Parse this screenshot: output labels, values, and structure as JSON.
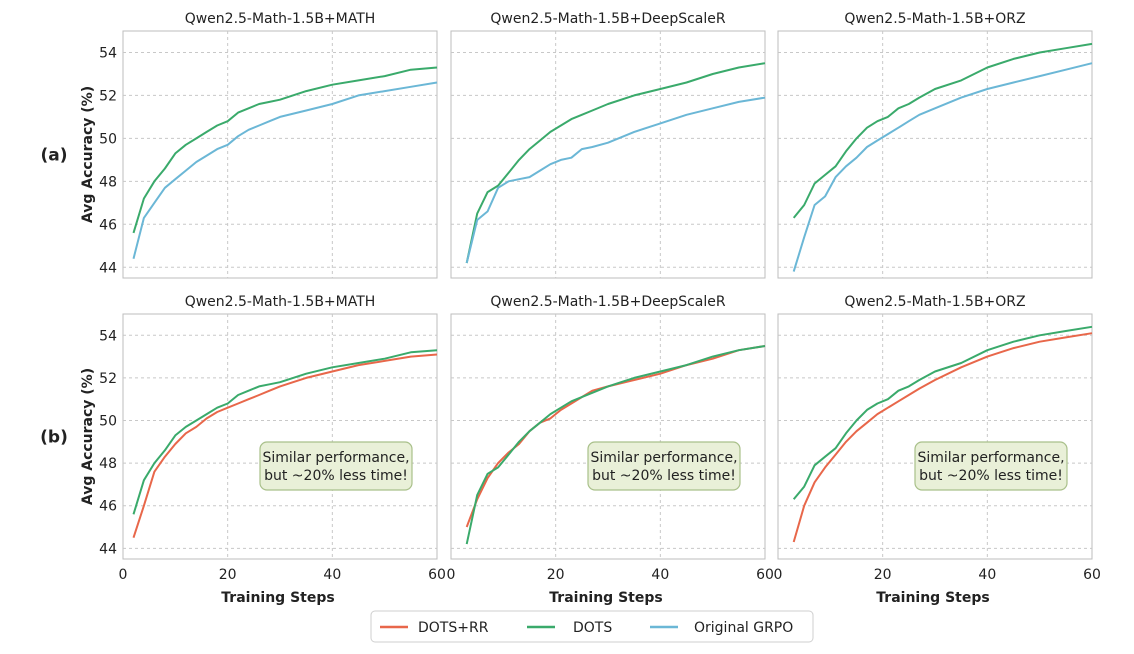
{
  "colors": {
    "DOTS+RR": "#e8674a",
    "DOTS": "#3aaa6b",
    "Original GRPO": "#6bb7d6",
    "annot_fill": "#e9f0d8",
    "annot_stroke": "#a9c08a"
  },
  "row_labels": [
    "(a)",
    "(b)"
  ],
  "ylabel": "Avg Accuracy (%)",
  "xlabel": "Training Steps",
  "annotation": [
    "Similar performance,",
    "but ~20% less time!"
  ],
  "legend": [
    "DOTS+RR",
    "DOTS",
    "Original GRPO"
  ],
  "chart_data": [
    {
      "type": "line",
      "row": "(a)",
      "title": "Qwen2.5-Math-1.5B+MATH",
      "xlim": [
        0,
        60
      ],
      "ylim": [
        43.5,
        55
      ],
      "xticks": [
        0,
        20,
        40,
        60
      ],
      "yticks": [
        44,
        46,
        48,
        50,
        52,
        54
      ],
      "grid": true,
      "series": [
        {
          "name": "DOTS",
          "x": [
            2,
            4,
            6,
            8,
            10,
            12,
            14,
            16,
            18,
            20,
            22,
            24,
            26,
            28,
            30,
            35,
            40,
            45,
            50,
            55,
            60
          ],
          "y": [
            45.6,
            47.2,
            48.0,
            48.6,
            49.3,
            49.7,
            50.0,
            50.3,
            50.6,
            50.8,
            51.2,
            51.4,
            51.6,
            51.7,
            51.8,
            52.2,
            52.5,
            52.7,
            52.9,
            53.2,
            53.3
          ]
        },
        {
          "name": "Original GRPO",
          "x": [
            2,
            4,
            6,
            8,
            10,
            12,
            14,
            16,
            18,
            20,
            22,
            24,
            26,
            28,
            30,
            35,
            40,
            45,
            50,
            55,
            60
          ],
          "y": [
            44.4,
            46.3,
            47.0,
            47.7,
            48.1,
            48.5,
            48.9,
            49.2,
            49.5,
            49.7,
            50.1,
            50.4,
            50.6,
            50.8,
            51.0,
            51.3,
            51.6,
            52.0,
            52.2,
            52.4,
            52.6
          ]
        }
      ]
    },
    {
      "type": "line",
      "row": "(a)",
      "title": "Qwen2.5-Math-1.5B+DeepScaleR",
      "xlim": [
        0,
        60
      ],
      "ylim": [
        43.5,
        55
      ],
      "xticks": [
        0,
        20,
        40,
        60
      ],
      "yticks": [
        44,
        46,
        48,
        50,
        52,
        54
      ],
      "grid": true,
      "series": [
        {
          "name": "DOTS",
          "x": [
            3,
            5,
            7,
            9,
            11,
            13,
            15,
            17,
            19,
            21,
            23,
            25,
            27,
            30,
            35,
            40,
            45,
            50,
            55,
            60
          ],
          "y": [
            44.2,
            46.5,
            47.5,
            47.8,
            48.4,
            49.0,
            49.5,
            49.9,
            50.3,
            50.6,
            50.9,
            51.1,
            51.3,
            51.6,
            52.0,
            52.3,
            52.6,
            53.0,
            53.3,
            53.5
          ]
        },
        {
          "name": "Original GRPO",
          "x": [
            3,
            5,
            7,
            9,
            11,
            13,
            15,
            17,
            19,
            21,
            23,
            25,
            27,
            30,
            35,
            40,
            45,
            50,
            55,
            60
          ],
          "y": [
            44.2,
            46.2,
            46.6,
            47.7,
            48.0,
            48.1,
            48.2,
            48.5,
            48.8,
            49.0,
            49.1,
            49.5,
            49.6,
            49.8,
            50.3,
            50.7,
            51.1,
            51.4,
            51.7,
            51.9
          ]
        }
      ]
    },
    {
      "type": "line",
      "row": "(a)",
      "title": "Qwen2.5-Math-1.5B+ORZ",
      "xlim": [
        0,
        60
      ],
      "ylim": [
        43.5,
        55
      ],
      "xticks": [
        0,
        20,
        40,
        60
      ],
      "yticks": [
        44,
        46,
        48,
        50,
        52,
        54
      ],
      "grid": true,
      "series": [
        {
          "name": "DOTS",
          "x": [
            3,
            5,
            7,
            9,
            11,
            13,
            15,
            17,
            19,
            21,
            23,
            25,
            27,
            30,
            35,
            40,
            45,
            50,
            55,
            60
          ],
          "y": [
            46.3,
            46.9,
            47.9,
            48.3,
            48.7,
            49.4,
            50.0,
            50.5,
            50.8,
            51.0,
            51.4,
            51.6,
            51.9,
            52.3,
            52.7,
            53.3,
            53.7,
            54.0,
            54.2,
            54.4
          ]
        },
        {
          "name": "Original GRPO",
          "x": [
            3,
            5,
            7,
            9,
            11,
            13,
            15,
            17,
            19,
            21,
            23,
            25,
            27,
            30,
            35,
            40,
            45,
            50,
            55,
            60
          ],
          "y": [
            43.8,
            45.4,
            46.9,
            47.3,
            48.2,
            48.7,
            49.1,
            49.6,
            49.9,
            50.2,
            50.5,
            50.8,
            51.1,
            51.4,
            51.9,
            52.3,
            52.6,
            52.9,
            53.2,
            53.5
          ]
        }
      ]
    },
    {
      "type": "line",
      "row": "(b)",
      "title": "Qwen2.5-Math-1.5B+MATH",
      "xlim": [
        0,
        60
      ],
      "ylim": [
        43.5,
        55
      ],
      "xticks": [
        0,
        20,
        40,
        60
      ],
      "yticks": [
        44,
        46,
        48,
        50,
        52,
        54
      ],
      "grid": true,
      "series": [
        {
          "name": "DOTS+RR",
          "x": [
            2,
            4,
            6,
            8,
            10,
            12,
            14,
            16,
            18,
            20,
            22,
            24,
            26,
            28,
            30,
            35,
            40,
            45,
            50,
            55,
            60
          ],
          "y": [
            44.5,
            46.0,
            47.6,
            48.3,
            48.9,
            49.4,
            49.7,
            50.1,
            50.4,
            50.6,
            50.8,
            51.0,
            51.2,
            51.4,
            51.6,
            52.0,
            52.3,
            52.6,
            52.8,
            53.0,
            53.1
          ]
        },
        {
          "name": "DOTS",
          "x": [
            2,
            4,
            6,
            8,
            10,
            12,
            14,
            16,
            18,
            20,
            22,
            24,
            26,
            28,
            30,
            35,
            40,
            45,
            50,
            55,
            60
          ],
          "y": [
            45.6,
            47.2,
            48.0,
            48.6,
            49.3,
            49.7,
            50.0,
            50.3,
            50.6,
            50.8,
            51.2,
            51.4,
            51.6,
            51.7,
            51.8,
            52.2,
            52.5,
            52.7,
            52.9,
            53.2,
            53.3
          ]
        }
      ]
    },
    {
      "type": "line",
      "row": "(b)",
      "title": "Qwen2.5-Math-1.5B+DeepScaleR",
      "xlim": [
        0,
        60
      ],
      "ylim": [
        43.5,
        55
      ],
      "xticks": [
        0,
        20,
        40,
        60
      ],
      "yticks": [
        44,
        46,
        48,
        50,
        52,
        54
      ],
      "grid": true,
      "series": [
        {
          "name": "DOTS+RR",
          "x": [
            3,
            5,
            7,
            9,
            11,
            13,
            15,
            17,
            19,
            21,
            23,
            25,
            27,
            30,
            35,
            40,
            45,
            50,
            55,
            60
          ],
          "y": [
            45.0,
            46.3,
            47.3,
            48.0,
            48.5,
            48.9,
            49.5,
            49.9,
            50.1,
            50.5,
            50.8,
            51.1,
            51.4,
            51.6,
            51.9,
            52.2,
            52.6,
            52.9,
            53.3,
            53.5
          ]
        },
        {
          "name": "DOTS",
          "x": [
            3,
            5,
            7,
            9,
            11,
            13,
            15,
            17,
            19,
            21,
            23,
            25,
            27,
            30,
            35,
            40,
            45,
            50,
            55,
            60
          ],
          "y": [
            44.2,
            46.5,
            47.5,
            47.8,
            48.4,
            49.0,
            49.5,
            49.9,
            50.3,
            50.6,
            50.9,
            51.1,
            51.3,
            51.6,
            52.0,
            52.3,
            52.6,
            53.0,
            53.3,
            53.5
          ]
        }
      ]
    },
    {
      "type": "line",
      "row": "(b)",
      "title": "Qwen2.5-Math-1.5B+ORZ",
      "xlim": [
        0,
        60
      ],
      "ylim": [
        43.5,
        55
      ],
      "xticks": [
        0,
        20,
        40,
        60
      ],
      "yticks": [
        44,
        46,
        48,
        50,
        52,
        54
      ],
      "grid": true,
      "series": [
        {
          "name": "DOTS+RR",
          "x": [
            3,
            5,
            7,
            9,
            11,
            13,
            15,
            17,
            19,
            21,
            23,
            25,
            27,
            30,
            35,
            40,
            45,
            50,
            55,
            60
          ],
          "y": [
            44.3,
            46.0,
            47.1,
            47.8,
            48.4,
            49.0,
            49.5,
            49.9,
            50.3,
            50.6,
            50.9,
            51.2,
            51.5,
            51.9,
            52.5,
            53.0,
            53.4,
            53.7,
            53.9,
            54.1
          ]
        },
        {
          "name": "DOTS",
          "x": [
            3,
            5,
            7,
            9,
            11,
            13,
            15,
            17,
            19,
            21,
            23,
            25,
            27,
            30,
            35,
            40,
            45,
            50,
            55,
            60
          ],
          "y": [
            46.3,
            46.9,
            47.9,
            48.3,
            48.7,
            49.4,
            50.0,
            50.5,
            50.8,
            51.0,
            51.4,
            51.6,
            51.9,
            52.3,
            52.7,
            53.3,
            53.7,
            54.0,
            54.2,
            54.4
          ]
        }
      ]
    }
  ]
}
